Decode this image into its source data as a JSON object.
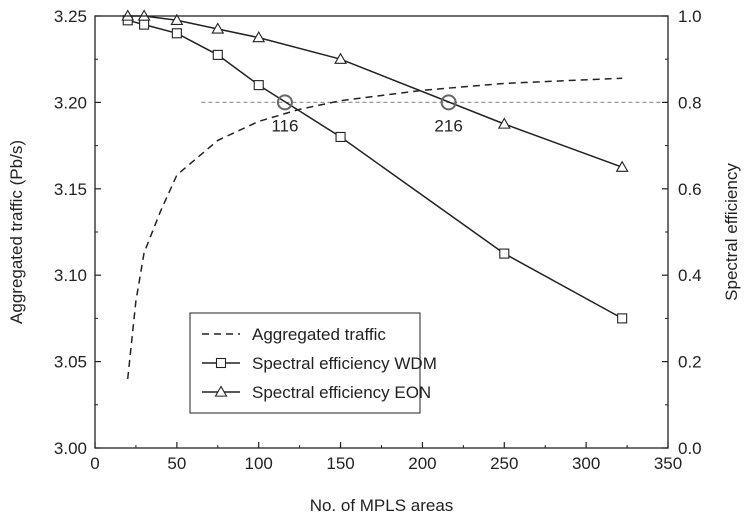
{
  "chart_data": {
    "type": "line",
    "xlabel": "No. of MPLS areas",
    "ylabel_left": "Aggregated traffic (Pb/s)",
    "ylabel_right": "Spectral efficiency",
    "xlim": [
      0,
      350
    ],
    "ylim_left": [
      3.0,
      3.25
    ],
    "ylim_right": [
      0.0,
      1.0
    ],
    "x_ticks": [
      "0",
      "50",
      "100",
      "150",
      "200",
      "250",
      "300",
      "350"
    ],
    "y_ticks_left": [
      "3.00",
      "3.05",
      "3.10",
      "3.15",
      "3.20",
      "3.25"
    ],
    "y_ticks_right": [
      "0.0",
      "0.2",
      "0.4",
      "0.6",
      "0.8",
      "1.0"
    ],
    "grid": false,
    "legend_position": "bottom-center",
    "series": [
      {
        "name": "Aggregated traffic",
        "axis": "left",
        "style": "dashed",
        "marker": "none",
        "x": [
          20,
          25,
          30,
          40,
          50,
          60,
          75,
          100,
          125,
          150,
          175,
          200,
          250,
          322
        ],
        "y": [
          3.04,
          3.085,
          3.113,
          3.137,
          3.158,
          3.166,
          3.178,
          3.189,
          3.196,
          3.201,
          3.204,
          3.207,
          3.211,
          3.214
        ]
      },
      {
        "name": "Spectral efficiency WDM",
        "axis": "right",
        "style": "solid",
        "marker": "square",
        "x": [
          20,
          30,
          50,
          75,
          100,
          150,
          250,
          322
        ],
        "y": [
          0.99,
          0.98,
          0.96,
          0.91,
          0.84,
          0.72,
          0.45,
          0.3
        ]
      },
      {
        "name": "Spectral efficiency EON",
        "axis": "right",
        "style": "solid",
        "marker": "triangle",
        "x": [
          20,
          30,
          50,
          75,
          100,
          150,
          250,
          322
        ],
        "y": [
          1.0,
          1.0,
          0.99,
          0.97,
          0.95,
          0.9,
          0.75,
          0.65
        ]
      }
    ],
    "reference_line": {
      "axis": "right",
      "y": 0.8,
      "x_from": 65,
      "x_to": 350
    },
    "annotations": [
      {
        "label": "116",
        "x": 116,
        "y": 0.8
      },
      {
        "label": "216",
        "x": 216,
        "y": 0.8
      }
    ]
  }
}
